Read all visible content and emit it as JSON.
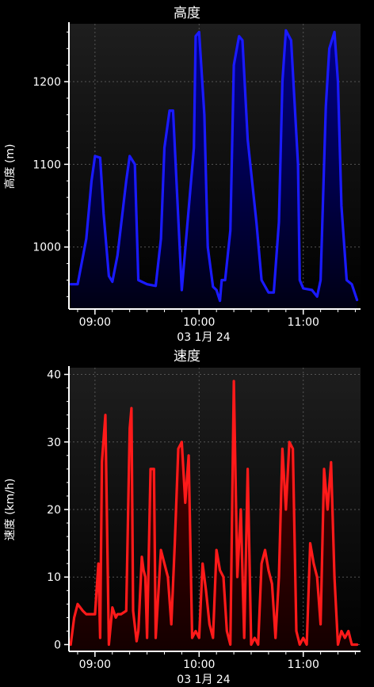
{
  "chart_data": [
    {
      "type": "area",
      "title": "高度",
      "ylabel": "高度 (m)",
      "xlabel": "03 1月 24",
      "xlim": [
        "08:45",
        "11:33"
      ],
      "ylim": [
        925,
        1270
      ],
      "yticks": [
        1000,
        1100,
        1200
      ],
      "xticks": [
        "09:00",
        "10:00",
        "11:00"
      ],
      "grid": true,
      "line_color": "#1a1aff",
      "series": [
        {
          "x": [
            "08:46",
            "08:50",
            "08:55",
            "08:58",
            "09:00",
            "09:03",
            "09:05",
            "09:08",
            "09:10",
            "09:13",
            "09:18",
            "09:20",
            "09:23",
            "09:25",
            "09:30",
            "09:35",
            "09:38",
            "09:40",
            "09:43",
            "09:45",
            "09:50",
            "09:57",
            "09:58",
            "10:00",
            "10:03",
            "10:05",
            "10:08",
            "10:10",
            "10:12",
            "10:13",
            "10:15",
            "10:18",
            "10:20",
            "10:23",
            "10:25",
            "10:28",
            "10:30",
            "10:33",
            "10:36",
            "10:40",
            "10:43",
            "10:46",
            "10:48",
            "10:50",
            "10:53",
            "10:57",
            "10:58",
            "11:00",
            "11:05",
            "11:08",
            "11:10",
            "11:13",
            "11:15",
            "11:18",
            "11:20",
            "11:22",
            "11:25",
            "11:28",
            "11:31"
          ],
          "values": [
            955,
            955,
            1010,
            1080,
            1110,
            1108,
            1040,
            965,
            958,
            990,
            1080,
            1110,
            1100,
            960,
            955,
            953,
            1010,
            1120,
            1165,
            1165,
            948,
            1120,
            1255,
            1260,
            1160,
            1000,
            952,
            948,
            935,
            960,
            960,
            1020,
            1220,
            1255,
            1250,
            1130,
            1090,
            1030,
            960,
            945,
            945,
            1030,
            1200,
            1262,
            1250,
            1100,
            960,
            950,
            948,
            940,
            960,
            1170,
            1240,
            1260,
            1200,
            1050,
            960,
            955,
            936
          ]
        }
      ]
    },
    {
      "type": "area",
      "title": "速度",
      "ylabel": "速度 (km/h)",
      "xlabel": "03 1月 24",
      "xlim": [
        "08:45",
        "11:33"
      ],
      "ylim": [
        -1,
        41
      ],
      "yticks": [
        0,
        10,
        20,
        30,
        40
      ],
      "xticks": [
        "09:00",
        "10:00",
        "11:00"
      ],
      "grid": true,
      "line_color": "#ff1a1a",
      "series": [
        {
          "x": [
            "08:46",
            "08:48",
            "08:50",
            "08:53",
            "08:55",
            "09:00",
            "09:02",
            "09:03",
            "09:04",
            "09:06",
            "09:08",
            "09:10",
            "09:12",
            "09:13",
            "09:15",
            "09:18",
            "09:20",
            "09:21",
            "09:22",
            "09:24",
            "09:25",
            "09:27",
            "09:28",
            "09:29",
            "09:30",
            "09:32",
            "09:34",
            "09:35",
            "09:38",
            "09:40",
            "09:42",
            "09:44",
            "09:46",
            "09:48",
            "09:50",
            "09:52",
            "09:54",
            "09:56",
            "09:58",
            "10:00",
            "10:02",
            "10:04",
            "10:06",
            "10:08",
            "10:10",
            "10:12",
            "10:14",
            "10:16",
            "10:18",
            "10:20",
            "10:22",
            "10:24",
            "10:26",
            "10:28",
            "10:30",
            "10:32",
            "10:34",
            "10:36",
            "10:38",
            "10:40",
            "10:42",
            "10:44",
            "10:46",
            "10:48",
            "10:50",
            "10:52",
            "10:54",
            "10:56",
            "10:58",
            "11:00",
            "11:02",
            "11:04",
            "11:06",
            "11:08",
            "11:10",
            "11:12",
            "11:14",
            "11:16",
            "11:18",
            "11:20",
            "11:22",
            "11:24",
            "11:26",
            "11:28",
            "11:30",
            "11:31"
          ],
          "values": [
            0,
            4,
            6,
            5,
            4.5,
            4.5,
            12,
            1,
            27,
            34,
            0,
            5.5,
            4,
            4.5,
            4.5,
            5,
            32,
            35,
            5,
            0.5,
            2,
            13,
            11,
            10,
            1,
            26,
            26,
            1,
            14,
            12,
            10,
            3,
            15,
            29,
            30,
            21,
            28,
            1,
            2,
            1,
            12,
            8,
            3,
            1,
            14,
            11,
            10,
            2,
            0,
            39,
            10,
            20,
            1,
            26,
            0,
            1,
            0,
            12,
            14,
            11,
            9,
            1,
            10,
            29,
            20,
            30,
            29,
            2,
            0,
            1,
            0,
            15,
            12,
            10,
            3,
            26,
            20,
            27,
            10,
            0,
            2,
            1,
            2,
            0,
            0,
            0
          ]
        }
      ]
    }
  ]
}
